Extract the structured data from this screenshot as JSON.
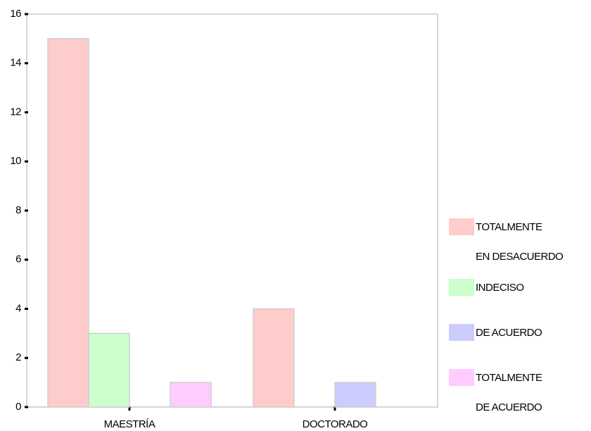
{
  "chart_data": {
    "type": "bar",
    "categories": [
      "MAESTRÍA",
      "DOCTORADO"
    ],
    "series": [
      {
        "name": "TOTALMENTE EN DESACUERDO",
        "color": "#ffcccc",
        "values": [
          15,
          4
        ]
      },
      {
        "name": "INDECISO",
        "color": "#ccffcc",
        "values": [
          3,
          0
        ]
      },
      {
        "name": "DE ACUERDO",
        "color": "#ccccff",
        "values": [
          0,
          1
        ]
      },
      {
        "name": "TOTALMENTE DE ACUERDO",
        "color": "#ffccff",
        "values": [
          1,
          0
        ]
      }
    ],
    "ylim": [
      0,
      16
    ],
    "yticks": [
      0,
      2,
      4,
      6,
      8,
      10,
      12,
      14,
      16
    ],
    "grid": false,
    "legend": "right"
  }
}
